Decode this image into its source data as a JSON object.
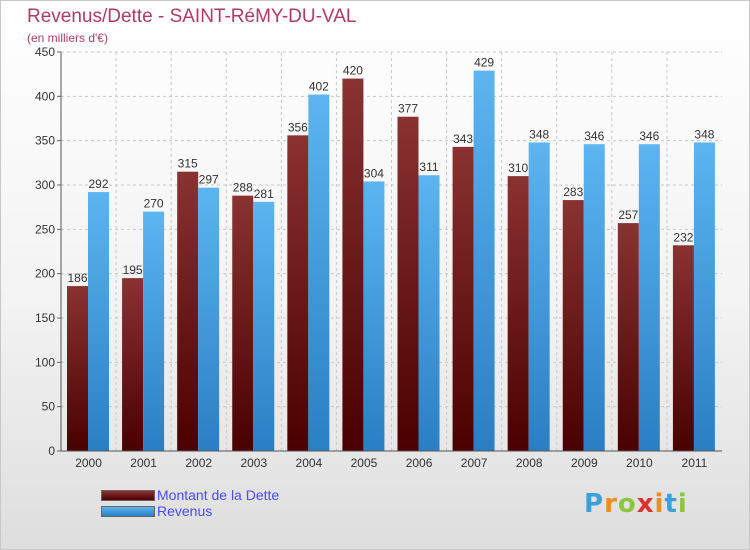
{
  "chart_data": {
    "type": "bar",
    "title": "Revenus/Dette - SAINT-RéMY-DU-VAL",
    "subtitle": "(en milliers d'€)",
    "categories": [
      "2000",
      "2001",
      "2002",
      "2003",
      "2004",
      "2005",
      "2006",
      "2007",
      "2008",
      "2009",
      "2010",
      "2011"
    ],
    "series": [
      {
        "name": "Montant de la Dette",
        "values": [
          186,
          195,
          315,
          288,
          356,
          420,
          377,
          343,
          310,
          283,
          257,
          232
        ],
        "color": "#6b1010"
      },
      {
        "name": "Revenus",
        "values": [
          292,
          270,
          297,
          281,
          402,
          304,
          311,
          429,
          348,
          346,
          346,
          348
        ],
        "color": "#3d9be0"
      }
    ],
    "ylim": [
      0,
      450
    ],
    "yticks": [
      0,
      50,
      100,
      150,
      200,
      250,
      300,
      350,
      400,
      450
    ],
    "grid": true,
    "legend_position": "bottom-left"
  },
  "logo": {
    "letters": [
      "P",
      "r",
      "o",
      "x",
      "i",
      "t",
      "i"
    ],
    "colors": [
      "#3aa0dc",
      "#f08c1c",
      "#8cc63f",
      "#e0312c",
      "#f08c1c",
      "#3aa0dc",
      "#8cc63f"
    ]
  }
}
